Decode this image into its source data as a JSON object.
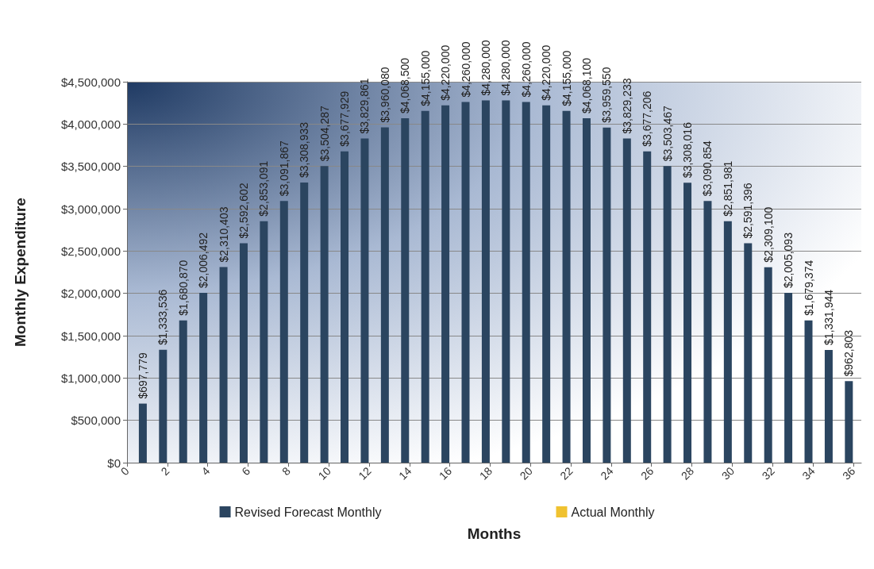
{
  "chart_data": {
    "type": "bar",
    "xlabel": "Months",
    "ylabel": "Monthly Expenditure",
    "x": [
      1,
      2,
      3,
      4,
      5,
      6,
      7,
      8,
      9,
      10,
      11,
      12,
      13,
      14,
      15,
      16,
      17,
      18,
      19,
      20,
      21,
      22,
      23,
      24,
      25,
      26,
      27,
      28,
      29,
      30,
      31,
      32,
      33,
      34,
      35,
      36
    ],
    "series": [
      {
        "name": "Revised Forecast Monthly",
        "color": "#2b4560",
        "values": [
          697779,
          1333536,
          1680870,
          2006492,
          2310403,
          2592602,
          2853091,
          3091867,
          3308933,
          3504287,
          3677929,
          3829861,
          3960080,
          4068500,
          4155000,
          4220000,
          4260000,
          4280000,
          4280000,
          4260000,
          4220000,
          4155000,
          4068100,
          3959550,
          3829233,
          3677206,
          3503467,
          3308016,
          3090854,
          2851981,
          2591396,
          2309100,
          2005093,
          1679374,
          1331944,
          962803
        ],
        "value_labels": [
          "$697,779",
          "$1,333,536",
          "$1,680,870",
          "$2,006,492",
          "$2,310,403",
          "$2,592,602",
          "$2,853,091",
          "$3,091,867",
          "$3,308,933",
          "$3,504,287",
          "$3,677,929",
          "$3,829,861",
          "$3,960,080",
          "$4,068,500",
          "$4,155,000",
          "$4,220,000",
          "$4,260,000",
          "$4,280,000",
          "$4,280,000",
          "$4,260,000",
          "$4,220,000",
          "$4,155,000",
          "$4,068,100",
          "$3,959,550",
          "$3,829,233",
          "$3,677,206",
          "$3,503,467",
          "$3,308,016",
          "$3,090,854",
          "$2,851,981",
          "$2,591,396",
          "$2,309,100",
          "$2,005,093",
          "$1,679,374",
          "$1,331,944",
          "$962,803"
        ]
      },
      {
        "name": "Actual Monthly",
        "color": "#f0c230",
        "values": [
          null,
          null,
          null,
          null,
          null,
          null,
          null,
          null,
          null,
          null,
          null,
          null,
          null,
          null,
          null,
          null,
          null,
          null,
          null,
          null,
          null,
          null,
          null,
          null,
          null,
          null,
          null,
          null,
          null,
          null,
          null,
          null,
          null,
          null,
          null,
          null
        ]
      }
    ],
    "xlim": [
      0,
      36.4
    ],
    "xticks": [
      0,
      2,
      4,
      6,
      8,
      10,
      12,
      14,
      16,
      18,
      20,
      22,
      24,
      26,
      28,
      30,
      32,
      34,
      36
    ],
    "ylim": [
      0,
      4500000
    ],
    "yticks": [
      {
        "value": 0,
        "label": "$0"
      },
      {
        "value": 500000,
        "label": "$500,000"
      },
      {
        "value": 1000000,
        "label": "$1,000,000"
      },
      {
        "value": 1500000,
        "label": "$1,500,000"
      },
      {
        "value": 2000000,
        "label": "$2,000,000"
      },
      {
        "value": 2500000,
        "label": "$2,500,000"
      },
      {
        "value": 3000000,
        "label": "$3,000,000"
      },
      {
        "value": 3500000,
        "label": "$3,500,000"
      },
      {
        "value": 4000000,
        "label": "$4,000,000"
      },
      {
        "value": 4500000,
        "label": "$4,500,000"
      }
    ],
    "grid": "y",
    "legend": "bottom"
  }
}
